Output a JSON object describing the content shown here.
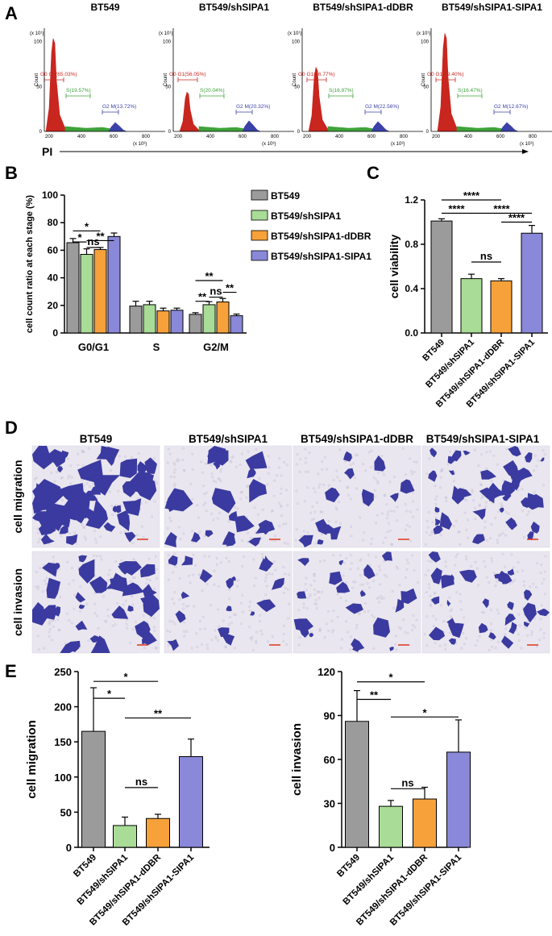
{
  "panel_labels": [
    "A",
    "B",
    "C",
    "D",
    "E"
  ],
  "colors": {
    "gray": "#9b9b9c",
    "green": "#a9dc97",
    "orange": "#f6a13a",
    "purple": "#8a88d8",
    "flow_red": "#c8261f",
    "flow_green": "#3fa23a",
    "flow_blue": "#3b41a8",
    "stain": "#3a3aa0",
    "background_cells": "#e9e6ef"
  },
  "panelA": {
    "x_axis_label": "PI",
    "y_label": "Count",
    "y_exp": "(x 10¹)",
    "x_exp": "(x 10³)",
    "x_ticks": [
      "200",
      "400",
      "600",
      "800"
    ],
    "y_ticks": [
      "0",
      "50",
      "100"
    ],
    "histograms": [
      {
        "title": "BT549",
        "g0": "G0 G1(65.03%)",
        "s": "S(19.57%)",
        "g2": "G2 M(13.72%)"
      },
      {
        "title": "BT549/shSIPA1",
        "g0": "G0 G1(56.05%)",
        "s": "S(20.04%)",
        "g2": "G2 M(20.32%)"
      },
      {
        "title": "BT549/shSIPA1-dDBR",
        "g0": "G0 G1(56.77%)",
        "s": "S(16.97%)",
        "g2": "G2 M(22.56%)"
      },
      {
        "title": "BT549/shSIPA1-SIPA1",
        "g0": "G0 G1(69.40%)",
        "s": "S(16.47%)",
        "g2": "G2 M(12.67%)"
      }
    ]
  },
  "panelD": {
    "columns": [
      "BT549",
      "BT549/shSIPA1",
      "BT549/shSIPA1-dDBR",
      "BT549/shSIPA1-SIPA1"
    ],
    "rows": [
      "cell migration",
      "cell invasion"
    ]
  },
  "chart_data": [
    {
      "type": "bar",
      "panel": "B",
      "ylabel": "cell count ratio at each stage (%)",
      "categories": [
        "G0/G1",
        "S",
        "G2/M"
      ],
      "ylim": [
        0,
        100
      ],
      "yticks": [
        0,
        20,
        40,
        60,
        80,
        100
      ],
      "legend": [
        "BT549",
        "BT549/shSIPA1",
        "BT549/shSIPA1-dDBR",
        "BT549/shSIPA1-SIPA1"
      ],
      "legend_position": "right",
      "series": [
        {
          "name": "BT549",
          "values": [
            65.5,
            19.5,
            13.5
          ],
          "errors": [
            3,
            3.5,
            1.2
          ]
        },
        {
          "name": "BT549/shSIPA1",
          "values": [
            57,
            20.5,
            20.5
          ],
          "errors": [
            4,
            2.5,
            2.2
          ]
        },
        {
          "name": "BT549/shSIPA1-dDBR",
          "values": [
            60.5,
            16,
            22.5
          ],
          "errors": [
            1.5,
            2,
            2.5
          ]
        },
        {
          "name": "BT549/shSIPA1-SIPA1",
          "values": [
            70,
            16.5,
            12.5
          ],
          "errors": [
            2.5,
            1.5,
            1.2
          ]
        }
      ],
      "significance": [
        {
          "group": 0,
          "from": 0,
          "to": 2,
          "y": 74,
          "label": "*"
        },
        {
          "group": 0,
          "from": 0,
          "to": 1,
          "y": 66,
          "label": "*"
        },
        {
          "group": 0,
          "from": 1,
          "to": 2,
          "y": 62,
          "label": "ns"
        },
        {
          "group": 0,
          "from": 1,
          "to": 3,
          "y": 67,
          "label": "**"
        },
        {
          "group": 2,
          "from": 0,
          "to": 2,
          "y": 38,
          "label": "**"
        },
        {
          "group": 2,
          "from": 0,
          "to": 1,
          "y": 23,
          "label": "**"
        },
        {
          "group": 2,
          "from": 1,
          "to": 2,
          "y": 26,
          "label": "ns"
        },
        {
          "group": 2,
          "from": 2,
          "to": 3,
          "y": 29.5,
          "label": "**"
        }
      ]
    },
    {
      "type": "bar",
      "panel": "C",
      "ylabel": "cell viability",
      "categories": [
        "BT549",
        "BT549/shSIPA1",
        "BT549/shSIPA1-dDBR",
        "BT549/shSIPA1-SIPA1"
      ],
      "values": [
        1.01,
        0.49,
        0.47,
        0.9
      ],
      "errors": [
        0.02,
        0.04,
        0.02,
        0.07
      ],
      "ylim": [
        0,
        1.2
      ],
      "yticks": [
        "0.0",
        "0.4",
        "0.8",
        "1.2"
      ],
      "significance": [
        {
          "from": 0,
          "to": 2,
          "y": 1.2,
          "label": "****"
        },
        {
          "from": 0,
          "to": 1,
          "y": 1.08,
          "label": "****"
        },
        {
          "from": 1,
          "to": 3,
          "y": 1.08,
          "label": "****"
        },
        {
          "from": 2,
          "to": 3,
          "y": 1.0,
          "label": "****"
        },
        {
          "from": 1,
          "to": 2,
          "y": 0.64,
          "label": "ns"
        }
      ]
    },
    {
      "type": "bar",
      "panel": "E-left",
      "ylabel": "cell migration",
      "categories": [
        "BT549",
        "BT549/shSIPA1",
        "BT549/shSIPA1-dDBR",
        "BT549/shSIPA1-SIPA1"
      ],
      "values": [
        165,
        31,
        41,
        129
      ],
      "errors": [
        62,
        12,
        6,
        25
      ],
      "ylim": [
        0,
        250
      ],
      "yticks": [
        0,
        50,
        100,
        150,
        200,
        250
      ],
      "significance": [
        {
          "from": 0,
          "to": 2,
          "y": 236,
          "label": "*"
        },
        {
          "from": 0,
          "to": 1,
          "y": 212,
          "label": "*"
        },
        {
          "from": 1,
          "to": 3,
          "y": 184,
          "label": "**"
        },
        {
          "from": 1,
          "to": 2,
          "y": 85,
          "label": "ns"
        }
      ]
    },
    {
      "type": "bar",
      "panel": "E-right",
      "ylabel": "cell invasion",
      "categories": [
        "BT549",
        "BT549/shSIPA1",
        "BT549/shSIPA1-dDBR",
        "BT549/shSIPA1-SIPA1"
      ],
      "values": [
        86,
        28,
        33,
        65
      ],
      "errors": [
        21,
        4,
        8,
        22
      ],
      "ylim": [
        0,
        120
      ],
      "yticks": [
        0,
        30,
        60,
        90,
        120
      ],
      "significance": [
        {
          "from": 0,
          "to": 2,
          "y": 113,
          "label": "*"
        },
        {
          "from": 0,
          "to": 1,
          "y": 101,
          "label": "**"
        },
        {
          "from": 1,
          "to": 3,
          "y": 89,
          "label": "*"
        },
        {
          "from": 1,
          "to": 2,
          "y": 40,
          "label": "ns"
        }
      ]
    }
  ]
}
